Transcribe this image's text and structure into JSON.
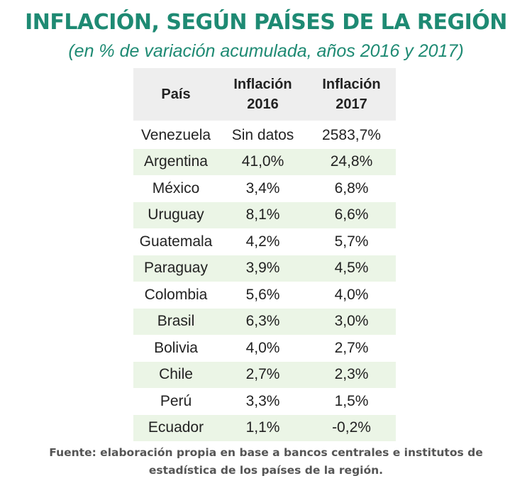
{
  "title": "INFLACIÓN, SEGÚN PAÍSES DE LA REGIÓN",
  "subtitle": "(en % de variación acumulada, años 2016 y 2017)",
  "table": {
    "headers": [
      {
        "line1": "País",
        "line2": ""
      },
      {
        "line1": "Inflación",
        "line2": "2016"
      },
      {
        "line1": "Inflación",
        "line2": "2017"
      }
    ],
    "rows": [
      [
        "Venezuela",
        "Sin datos",
        "2583,7%"
      ],
      [
        "Argentina",
        "41,0%",
        "24,8%"
      ],
      [
        "México",
        "3,4%",
        "6,8%"
      ],
      [
        "Uruguay",
        "8,1%",
        "6,6%"
      ],
      [
        "Guatemala",
        "4,2%",
        "5,7%"
      ],
      [
        "Paraguay",
        "3,9%",
        "4,5%"
      ],
      [
        "Colombia",
        "5,6%",
        "4,0%"
      ],
      [
        "Brasil",
        "6,3%",
        "3,0%"
      ],
      [
        "Bolivia",
        "4,0%",
        "2,7%"
      ],
      [
        "Chile",
        "2,7%",
        "2,3%"
      ],
      [
        "Perú",
        "3,3%",
        "1,5%"
      ],
      [
        "Ecuador",
        "1,1%",
        "-0,2%"
      ]
    ]
  },
  "source": {
    "line1": "Fuente: elaboración propia en base a bancos centrales e institutos de",
    "line2": "estadística de los países de la región."
  },
  "colors": {
    "title": "#1e8a73",
    "header_bg": "#eeeeee",
    "shaded_row_bg": "#ebf5e6"
  },
  "chart_data": {
    "type": "table",
    "title": "INFLACIÓN, SEGÚN PAÍSES DE LA REGIÓN",
    "subtitle": "(en % de variación acumulada, años 2016 y 2017)",
    "columns": [
      "País",
      "Inflación 2016",
      "Inflación 2017"
    ],
    "categories": [
      "Venezuela",
      "Argentina",
      "México",
      "Uruguay",
      "Guatemala",
      "Paraguay",
      "Colombia",
      "Brasil",
      "Bolivia",
      "Chile",
      "Perú",
      "Ecuador"
    ],
    "series": [
      {
        "name": "Inflación 2016",
        "values": [
          null,
          41.0,
          3.4,
          8.1,
          4.2,
          3.9,
          5.6,
          6.3,
          4.0,
          2.7,
          3.3,
          1.1
        ]
      },
      {
        "name": "Inflación 2017",
        "values": [
          2583.7,
          24.8,
          6.8,
          6.6,
          5.7,
          4.5,
          4.0,
          3.0,
          2.7,
          2.3,
          1.5,
          -0.2
        ]
      }
    ]
  }
}
